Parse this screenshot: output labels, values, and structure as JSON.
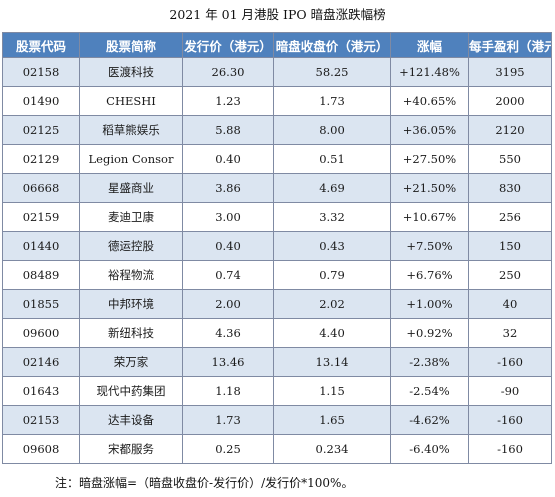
{
  "title": "2021 年 01 月港股 IPO 暗盘涨跌幅榜",
  "headers": [
    "股票代码",
    "股票简称",
    "发行价（港元）",
    "暗盘收盘价（港元）",
    "涨幅",
    "每手盈利（港元）"
  ],
  "rows": [
    [
      "02158",
      "医渡科技",
      "26.30",
      "58.25",
      "+121.48%",
      "3195"
    ],
    [
      "01490",
      "CHESHI",
      "1.23",
      "1.73",
      "+40.65%",
      "2000"
    ],
    [
      "02125",
      "稻草熊娱乐",
      "5.88",
      "8.00",
      "+36.05%",
      "2120"
    ],
    [
      "02129",
      "Legion Consor",
      "0.40",
      "0.51",
      "+27.50%",
      "550"
    ],
    [
      "06668",
      "星盛商业",
      "3.86",
      "4.69",
      "+21.50%",
      "830"
    ],
    [
      "02159",
      "麦迪卫康",
      "3.00",
      "3.32",
      "+10.67%",
      "256"
    ],
    [
      "01440",
      "德运控股",
      "0.40",
      "0.43",
      "+7.50%",
      "150"
    ],
    [
      "08489",
      "裕程物流",
      "0.74",
      "0.79",
      "+6.76%",
      "250"
    ],
    [
      "01855",
      "中邦环境",
      "2.00",
      "2.02",
      "+1.00%",
      "40"
    ],
    [
      "09600",
      "新纽科技",
      "4.36",
      "4.40",
      "+0.92%",
      "32"
    ],
    [
      "02146",
      "荣万家",
      "13.46",
      "13.14",
      "-2.38%",
      "-160"
    ],
    [
      "01643",
      "现代中药集团",
      "1.18",
      "1.15",
      "-2.54%",
      "-90"
    ],
    [
      "02153",
      "达丰设备",
      "1.73",
      "1.65",
      "-4.62%",
      "-160"
    ],
    [
      "09608",
      "宋都服务",
      "0.25",
      "0.234",
      "-6.40%",
      "-160"
    ]
  ],
  "note": "注：暗盘涨幅=（暗盘收盘价-发行价）/发行价*100%。",
  "colors": {
    "header_bg": "#4f81bd",
    "header_text": "#ffffff",
    "stripe_bg": "#dbe5f1",
    "border": "#7f8aa3"
  }
}
